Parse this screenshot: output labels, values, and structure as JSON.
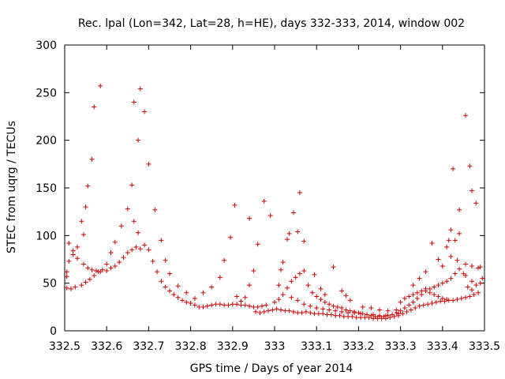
{
  "chart_data": {
    "type": "scatter",
    "title": "Rec. lpal (Lon=342, Lat=28, h=HE), days 332-333, 2014, window 002",
    "xlabel": "GPS time / Days of year 2014",
    "ylabel": "STEC from uqrg / TECUs",
    "xlim": [
      332.5,
      333.5
    ],
    "ylim": [
      0,
      300
    ],
    "grid": false,
    "legend": "none",
    "marker": "plus",
    "marker_color": "#d00000",
    "xticks": [
      "332.5",
      "332.6",
      "332.7",
      "332.8",
      "332.9",
      "333",
      "333.1",
      "333.2",
      "333.3",
      "333.4",
      "333.5"
    ],
    "yticks": [
      "0",
      "50",
      "100",
      "150",
      "200",
      "250",
      "300"
    ],
    "series": [
      {
        "points": [
          [
            332.505,
            62
          ],
          [
            332.51,
            92
          ],
          [
            332.52,
            84
          ],
          [
            332.53,
            88
          ],
          [
            332.54,
            115
          ],
          [
            332.545,
            101
          ],
          [
            332.55,
            130
          ],
          [
            332.555,
            152
          ],
          [
            332.565,
            180
          ],
          [
            332.57,
            235
          ],
          [
            332.585,
            257
          ],
          [
            332.505,
            57
          ],
          [
            332.51,
            73
          ],
          [
            332.52,
            80
          ],
          [
            332.53,
            76
          ],
          [
            332.545,
            70
          ],
          [
            332.555,
            66
          ],
          [
            332.565,
            64
          ],
          [
            332.575,
            63
          ],
          [
            332.585,
            62
          ],
          [
            332.6,
            63
          ],
          [
            332.61,
            66
          ],
          [
            332.62,
            68
          ],
          [
            332.63,
            72
          ],
          [
            332.64,
            77
          ],
          [
            332.65,
            82
          ],
          [
            332.66,
            85
          ],
          [
            332.67,
            88
          ],
          [
            332.68,
            86
          ],
          [
            332.505,
            45
          ],
          [
            332.515,
            44
          ],
          [
            332.525,
            46
          ],
          [
            332.54,
            48
          ],
          [
            332.55,
            51
          ],
          [
            332.56,
            54
          ],
          [
            332.57,
            58
          ],
          [
            332.58,
            62
          ],
          [
            332.59,
            64
          ],
          [
            332.6,
            70
          ],
          [
            332.61,
            82
          ],
          [
            332.62,
            93
          ],
          [
            332.635,
            110
          ],
          [
            332.65,
            128
          ],
          [
            332.665,
            115
          ],
          [
            332.675,
            103
          ],
          [
            332.69,
            90
          ],
          [
            332.7,
            85
          ],
          [
            332.66,
            153
          ],
          [
            332.665,
            240
          ],
          [
            332.675,
            200
          ],
          [
            332.68,
            254
          ],
          [
            332.69,
            230
          ],
          [
            332.7,
            175
          ],
          [
            332.715,
            127
          ],
          [
            332.73,
            95
          ],
          [
            332.74,
            74
          ],
          [
            332.75,
            60
          ],
          [
            332.71,
            73
          ],
          [
            332.72,
            62
          ],
          [
            332.73,
            52
          ],
          [
            332.74,
            46
          ],
          [
            332.75,
            42
          ],
          [
            332.76,
            38
          ],
          [
            332.77,
            35
          ],
          [
            332.78,
            32
          ],
          [
            332.79,
            30
          ],
          [
            332.8,
            29
          ],
          [
            332.81,
            27
          ],
          [
            332.82,
            25
          ],
          [
            332.83,
            25
          ],
          [
            332.84,
            26
          ],
          [
            332.85,
            27
          ],
          [
            332.86,
            28
          ],
          [
            332.87,
            28
          ],
          [
            332.88,
            27
          ],
          [
            332.89,
            27
          ],
          [
            332.9,
            28
          ],
          [
            332.91,
            28
          ],
          [
            332.92,
            27
          ],
          [
            332.93,
            27
          ],
          [
            332.94,
            26
          ],
          [
            332.95,
            25
          ],
          [
            332.96,
            25
          ],
          [
            332.97,
            26
          ],
          [
            332.98,
            27
          ],
          [
            332.77,
            47
          ],
          [
            332.79,
            40
          ],
          [
            332.81,
            34
          ],
          [
            332.83,
            40
          ],
          [
            332.85,
            46
          ],
          [
            332.87,
            56
          ],
          [
            332.88,
            74
          ],
          [
            332.895,
            98
          ],
          [
            332.905,
            132
          ],
          [
            332.91,
            36
          ],
          [
            332.92,
            31
          ],
          [
            332.93,
            35
          ],
          [
            332.94,
            48
          ],
          [
            332.95,
            63
          ],
          [
            332.96,
            91
          ],
          [
            332.94,
            118
          ],
          [
            332.975,
            136
          ],
          [
            332.99,
            121
          ],
          [
            332.955,
            20
          ],
          [
            332.965,
            19
          ],
          [
            332.975,
            20
          ],
          [
            332.985,
            21
          ],
          [
            332.995,
            22
          ],
          [
            333.005,
            23
          ],
          [
            333.015,
            22
          ],
          [
            333.025,
            21
          ],
          [
            333.035,
            21
          ],
          [
            333.045,
            20
          ],
          [
            333.055,
            19
          ],
          [
            333.065,
            19
          ],
          [
            333.075,
            20
          ],
          [
            333.085,
            19
          ],
          [
            333.095,
            18
          ],
          [
            333.105,
            18
          ],
          [
            333.115,
            18
          ],
          [
            333.125,
            17
          ],
          [
            333.135,
            17
          ],
          [
            333.145,
            16
          ],
          [
            333.155,
            16
          ],
          [
            333.165,
            15
          ],
          [
            333.175,
            15
          ],
          [
            333.185,
            15
          ],
          [
            333.195,
            14
          ],
          [
            333.205,
            14
          ],
          [
            333.215,
            14
          ],
          [
            333.225,
            14
          ],
          [
            333.235,
            13
          ],
          [
            333.245,
            13
          ],
          [
            333.255,
            13
          ],
          [
            333.265,
            13
          ],
          [
            333.275,
            14
          ],
          [
            333.285,
            15
          ],
          [
            333.295,
            16
          ],
          [
            333.305,
            18
          ],
          [
            333.315,
            20
          ],
          [
            333.325,
            22
          ],
          [
            333.335,
            24
          ],
          [
            333.345,
            26
          ],
          [
            333.355,
            27
          ],
          [
            333.365,
            28
          ],
          [
            333.375,
            29
          ],
          [
            333.385,
            30
          ],
          [
            333.395,
            31
          ],
          [
            333.405,
            31
          ],
          [
            333.415,
            32
          ],
          [
            333.425,
            32
          ],
          [
            333.435,
            33
          ],
          [
            333.445,
            34
          ],
          [
            333.455,
            35
          ],
          [
            333.465,
            36
          ],
          [
            333.475,
            38
          ],
          [
            333.485,
            40
          ],
          [
            333.0,
            30
          ],
          [
            333.01,
            33
          ],
          [
            333.02,
            38
          ],
          [
            333.03,
            45
          ],
          [
            333.04,
            52
          ],
          [
            333.05,
            56
          ],
          [
            333.06,
            60
          ],
          [
            333.07,
            63
          ],
          [
            333.08,
            48
          ],
          [
            333.09,
            40
          ],
          [
            333.1,
            36
          ],
          [
            333.11,
            33
          ],
          [
            333.12,
            30
          ],
          [
            333.13,
            28
          ],
          [
            333.14,
            26
          ],
          [
            333.15,
            25
          ],
          [
            333.16,
            24
          ],
          [
            333.17,
            22
          ],
          [
            333.18,
            21
          ],
          [
            333.19,
            20
          ],
          [
            333.2,
            19
          ],
          [
            333.21,
            18
          ],
          [
            333.22,
            17
          ],
          [
            333.23,
            16
          ],
          [
            333.24,
            15
          ],
          [
            333.25,
            15
          ],
          [
            333.26,
            15
          ],
          [
            333.27,
            16
          ],
          [
            333.28,
            17
          ],
          [
            333.29,
            19
          ],
          [
            333.3,
            21
          ],
          [
            333.31,
            24
          ],
          [
            333.32,
            27
          ],
          [
            333.33,
            30
          ],
          [
            333.34,
            34
          ],
          [
            333.35,
            38
          ],
          [
            333.36,
            42
          ],
          [
            333.37,
            44
          ],
          [
            333.38,
            46
          ],
          [
            333.39,
            48
          ],
          [
            333.4,
            50
          ],
          [
            333.41,
            52
          ],
          [
            333.42,
            55
          ],
          [
            333.43,
            60
          ],
          [
            333.44,
            65
          ],
          [
            333.455,
            70
          ],
          [
            333.47,
            68
          ],
          [
            333.485,
            66
          ],
          [
            333.01,
            48
          ],
          [
            333.015,
            64
          ],
          [
            333.03,
            96
          ],
          [
            333.045,
            124
          ],
          [
            333.06,
            145
          ],
          [
            333.02,
            72
          ],
          [
            333.035,
            102
          ],
          [
            333.055,
            104
          ],
          [
            333.07,
            94
          ],
          [
            333.095,
            59
          ],
          [
            333.04,
            35
          ],
          [
            333.055,
            32
          ],
          [
            333.07,
            28
          ],
          [
            333.085,
            26
          ],
          [
            333.1,
            24
          ],
          [
            333.115,
            23
          ],
          [
            333.13,
            22
          ],
          [
            333.145,
            21
          ],
          [
            333.16,
            20
          ],
          [
            333.175,
            19
          ],
          [
            333.19,
            19
          ],
          [
            333.205,
            18
          ],
          [
            333.22,
            17
          ],
          [
            333.235,
            17
          ],
          [
            333.25,
            16
          ],
          [
            333.265,
            16
          ],
          [
            333.28,
            17
          ],
          [
            333.295,
            18
          ],
          [
            333.11,
            44
          ],
          [
            333.12,
            38
          ],
          [
            333.14,
            67
          ],
          [
            333.16,
            42
          ],
          [
            333.17,
            37
          ],
          [
            333.18,
            32
          ],
          [
            333.21,
            25
          ],
          [
            333.23,
            24
          ],
          [
            333.25,
            22
          ],
          [
            333.27,
            21
          ],
          [
            333.29,
            22
          ],
          [
            333.3,
            30
          ],
          [
            333.31,
            34
          ],
          [
            333.32,
            36
          ],
          [
            333.33,
            38
          ],
          [
            333.34,
            40
          ],
          [
            333.35,
            42
          ],
          [
            333.36,
            44
          ],
          [
            333.37,
            40
          ],
          [
            333.38,
            38
          ],
          [
            333.39,
            36
          ],
          [
            333.4,
            34
          ],
          [
            333.41,
            33
          ],
          [
            333.33,
            48
          ],
          [
            333.345,
            55
          ],
          [
            333.36,
            62
          ],
          [
            333.375,
            92
          ],
          [
            333.39,
            75
          ],
          [
            333.4,
            68
          ],
          [
            333.41,
            88
          ],
          [
            333.42,
            106
          ],
          [
            333.43,
            95
          ],
          [
            333.44,
            102
          ],
          [
            333.455,
            58
          ],
          [
            333.47,
            52
          ],
          [
            333.415,
            95
          ],
          [
            333.425,
            170
          ],
          [
            333.44,
            127
          ],
          [
            333.455,
            226
          ],
          [
            333.465,
            173
          ],
          [
            333.47,
            147
          ],
          [
            333.48,
            134
          ],
          [
            333.49,
            67
          ],
          [
            333.42,
            78
          ],
          [
            333.435,
            74
          ],
          [
            333.45,
            60
          ],
          [
            333.46,
            46
          ],
          [
            333.47,
            43
          ],
          [
            333.48,
            48
          ],
          [
            333.49,
            50
          ],
          [
            333.495,
            55
          ]
        ]
      }
    ]
  }
}
